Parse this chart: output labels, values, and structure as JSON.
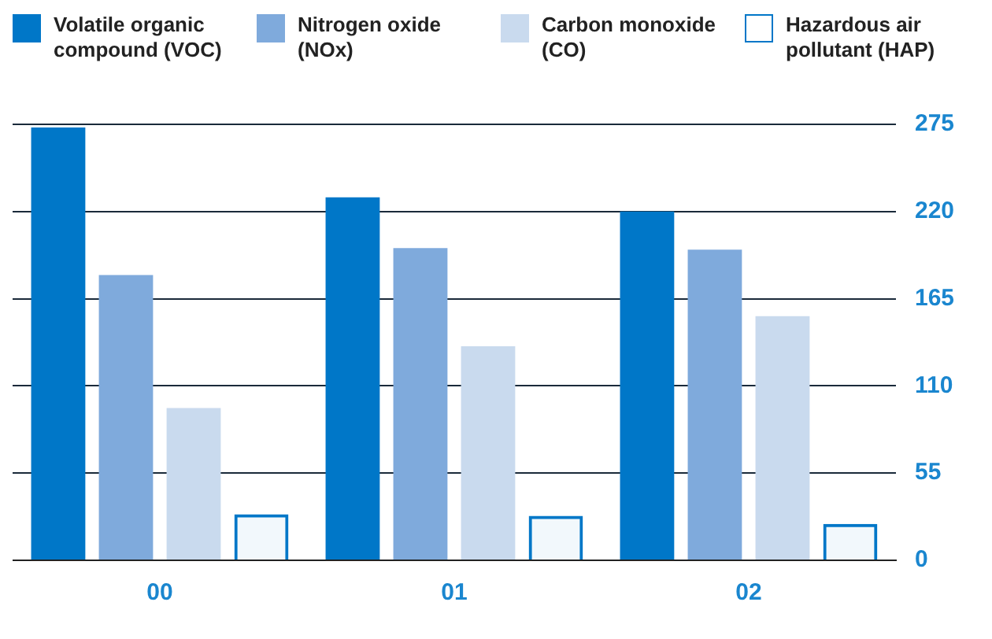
{
  "chart_data": {
    "type": "bar",
    "categories": [
      "00",
      "01",
      "02"
    ],
    "series": [
      {
        "name": "Volatile organic compound (VOC)",
        "color": "#0077c8",
        "values": [
          273,
          229,
          220
        ]
      },
      {
        "name": "Nitrogen oxide (NOx)",
        "color": "#7faadc",
        "values": [
          180,
          197,
          196
        ]
      },
      {
        "name": "Carbon monoxide (CO)",
        "color": "#c9daee",
        "values": [
          96,
          135,
          154
        ]
      },
      {
        "name": "Hazardous air pollutant (HAP)",
        "color": "#0077c8",
        "values": [
          29,
          28,
          23
        ]
      }
    ],
    "ylim": [
      0,
      275
    ],
    "yticks": [
      0,
      55,
      110,
      165,
      220,
      275
    ],
    "grid": "y",
    "legend": "top"
  }
}
